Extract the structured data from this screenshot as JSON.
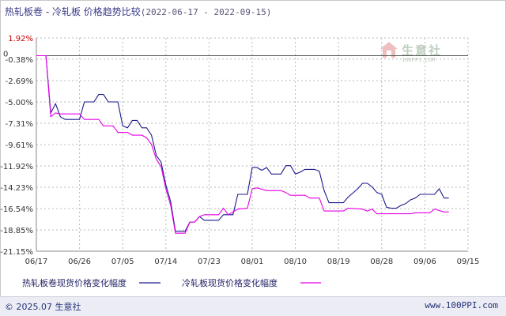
{
  "header": {
    "title": "热轧板卷 - 冷轧板 价格趋势比较",
    "date_range": "(2022-06-17 - 2022-09-15)"
  },
  "watermark": {
    "text": "生意社",
    "url": "100PPI.COM",
    "icon": "house-logo-icon"
  },
  "footer": {
    "copyright": "© 2025.07 生意社",
    "site": "www.100PPI.com"
  },
  "colors": {
    "series1": "#1a1a8c",
    "series2": "#e600e6",
    "zero_line": "#555555",
    "grid": "#b8b8b8",
    "positive_tick": "#cc0000"
  },
  "chart_data": {
    "type": "line",
    "title": "热轧板卷 - 冷轧板 价格趋势比较",
    "xlabel": "",
    "ylabel": "",
    "ylim": [
      -21.15,
      1.92
    ],
    "y_ticks": [
      "1.92%",
      "-0.38%",
      "-2.69%",
      "-5.00%",
      "-7.31%",
      "-9.61%",
      "-11.92%",
      "-14.23%",
      "-16.54%",
      "-18.85%",
      "-21.15%"
    ],
    "y_tick_values": [
      1.92,
      -0.38,
      -2.69,
      -5.0,
      -7.31,
      -9.61,
      -11.92,
      -14.23,
      -16.54,
      -18.85,
      -21.15
    ],
    "zero_label": "0",
    "x_ticks": [
      "06/17",
      "06/26",
      "07/05",
      "07/14",
      "07/23",
      "08/01",
      "08/10",
      "08/19",
      "08/28",
      "09/06",
      "09/15"
    ],
    "x_days": 90,
    "legend_position": "bottom",
    "grid": true,
    "series": [
      {
        "name": "热轧板卷现货价格变化幅度",
        "color": "#1a1a8c",
        "points": [
          [
            0,
            0
          ],
          [
            2,
            0
          ],
          [
            3,
            -6.2
          ],
          [
            4,
            -5.2
          ],
          [
            5,
            -6.6
          ],
          [
            6,
            -6.9
          ],
          [
            9,
            -6.9
          ],
          [
            10,
            -5.0
          ],
          [
            12,
            -5.0
          ],
          [
            13,
            -4.2
          ],
          [
            14,
            -4.2
          ],
          [
            15,
            -5.0
          ],
          [
            17,
            -5.0
          ],
          [
            18,
            -7.6
          ],
          [
            19,
            -7.8
          ],
          [
            20,
            -7.0
          ],
          [
            21,
            -7.0
          ],
          [
            22,
            -7.8
          ],
          [
            23,
            -7.8
          ],
          [
            24,
            -8.6
          ],
          [
            25,
            -10.8
          ],
          [
            26,
            -11.5
          ],
          [
            27,
            -14.0
          ],
          [
            28,
            -15.8
          ],
          [
            29,
            -19.0
          ],
          [
            31,
            -19.0
          ],
          [
            32,
            -18.0
          ],
          [
            33,
            -18.0
          ],
          [
            34,
            -17.4
          ],
          [
            35,
            -17.8
          ],
          [
            38,
            -17.8
          ],
          [
            39,
            -17.2
          ],
          [
            41,
            -17.2
          ],
          [
            42,
            -15.0
          ],
          [
            44,
            -15.0
          ],
          [
            45,
            -12.1
          ],
          [
            46,
            -12.1
          ],
          [
            47,
            -12.4
          ],
          [
            48,
            -12.1
          ],
          [
            49,
            -12.8
          ],
          [
            51,
            -12.8
          ],
          [
            52,
            -11.9
          ],
          [
            53,
            -11.9
          ],
          [
            54,
            -12.8
          ],
          [
            55,
            -12.6
          ],
          [
            56,
            -12.3
          ],
          [
            58,
            -12.3
          ],
          [
            59,
            -12.5
          ],
          [
            60,
            -14.6
          ],
          [
            61,
            -15.9
          ],
          [
            64,
            -15.9
          ],
          [
            65,
            -15.3
          ],
          [
            67,
            -14.4
          ],
          [
            68,
            -13.8
          ],
          [
            69,
            -13.8
          ],
          [
            70,
            -14.2
          ],
          [
            71,
            -14.8
          ],
          [
            72,
            -15.0
          ],
          [
            73,
            -16.4
          ],
          [
            74,
            -16.5
          ],
          [
            75,
            -16.5
          ],
          [
            76,
            -16.2
          ],
          [
            77,
            -16.0
          ],
          [
            78,
            -15.6
          ],
          [
            79,
            -15.4
          ],
          [
            80,
            -15.0
          ],
          [
            83,
            -15.0
          ],
          [
            84,
            -14.4
          ],
          [
            85,
            -15.4
          ],
          [
            86,
            -15.4
          ]
        ]
      },
      {
        "name": "冷轧板现货价格变化幅度",
        "color": "#e600e6",
        "points": [
          [
            0,
            0
          ],
          [
            2,
            0
          ],
          [
            3,
            -6.6
          ],
          [
            4,
            -6.2
          ],
          [
            5,
            -6.3
          ],
          [
            9,
            -6.3
          ],
          [
            10,
            -6.9
          ],
          [
            13,
            -6.9
          ],
          [
            14,
            -7.6
          ],
          [
            16,
            -7.6
          ],
          [
            17,
            -8.3
          ],
          [
            19,
            -8.3
          ],
          [
            20,
            -8.6
          ],
          [
            22,
            -8.6
          ],
          [
            23,
            -8.9
          ],
          [
            24,
            -9.6
          ],
          [
            25,
            -11.2
          ],
          [
            26,
            -12.0
          ],
          [
            27,
            -14.4
          ],
          [
            28,
            -16.2
          ],
          [
            29,
            -19.2
          ],
          [
            31,
            -19.2
          ],
          [
            32,
            -18.0
          ],
          [
            33,
            -18.0
          ],
          [
            34,
            -17.4
          ],
          [
            35,
            -17.2
          ],
          [
            38,
            -17.2
          ],
          [
            39,
            -16.5
          ],
          [
            40,
            -17.2
          ],
          [
            42,
            -16.6
          ],
          [
            44,
            -16.5
          ],
          [
            45,
            -14.4
          ],
          [
            46,
            -14.3
          ],
          [
            48,
            -14.6
          ],
          [
            51,
            -14.6
          ],
          [
            52,
            -14.8
          ],
          [
            53,
            -15.1
          ],
          [
            56,
            -15.1
          ],
          [
            57,
            -15.4
          ],
          [
            59,
            -15.4
          ],
          [
            60,
            -16.8
          ],
          [
            64,
            -16.8
          ],
          [
            65,
            -16.5
          ],
          [
            68,
            -16.6
          ],
          [
            69,
            -16.8
          ],
          [
            70,
            -16.6
          ],
          [
            71,
            -17.1
          ],
          [
            78,
            -17.1
          ],
          [
            79,
            -17.0
          ],
          [
            82,
            -17.0
          ],
          [
            83,
            -16.6
          ],
          [
            85,
            -16.9
          ],
          [
            86,
            -16.9
          ]
        ]
      }
    ]
  }
}
